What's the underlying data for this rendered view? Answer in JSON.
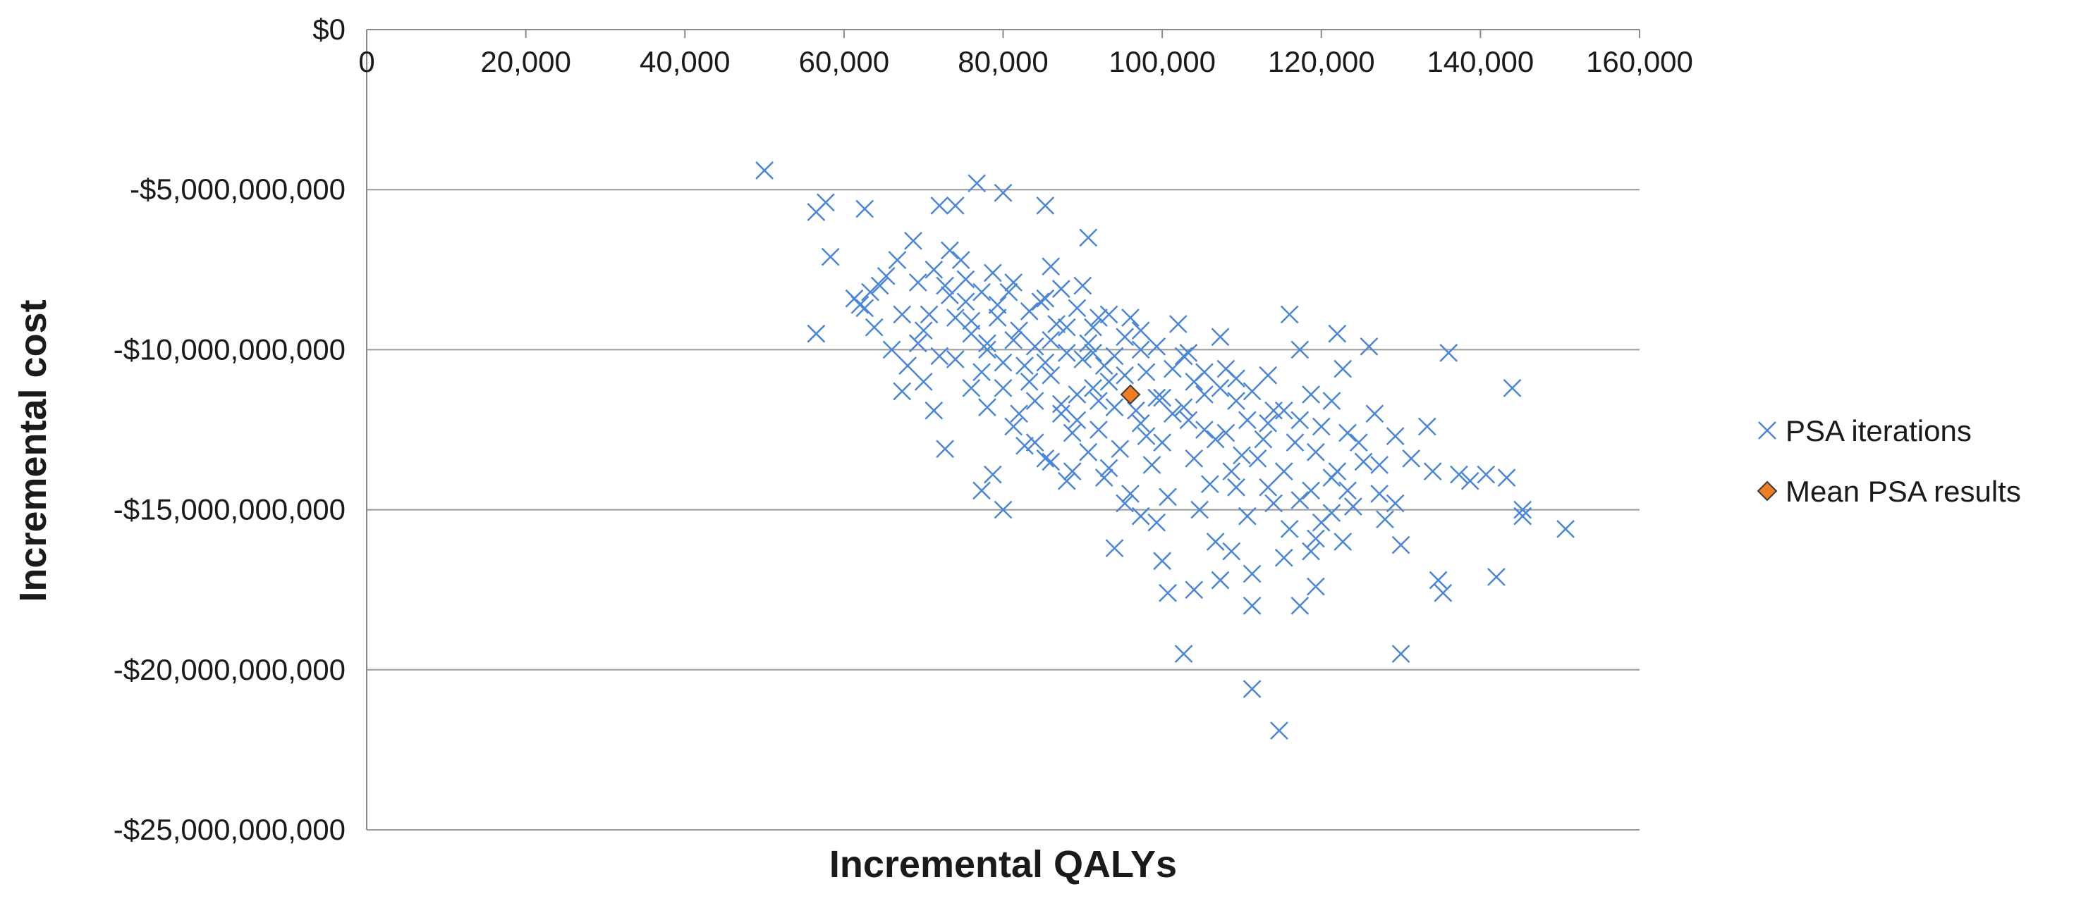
{
  "chart_data": {
    "type": "scatter",
    "title": "",
    "xlabel": "Incremental QALYs",
    "ylabel": "Incremental cost",
    "xlim": [
      0,
      160000
    ],
    "ylim": [
      -25000000000,
      0
    ],
    "x_ticks": [
      {
        "value": 0,
        "label": "0"
      },
      {
        "value": 20000,
        "label": "20,000"
      },
      {
        "value": 40000,
        "label": "40,000"
      },
      {
        "value": 60000,
        "label": "60,000"
      },
      {
        "value": 80000,
        "label": "80,000"
      },
      {
        "value": 100000,
        "label": "100,000"
      },
      {
        "value": 120000,
        "label": "120,000"
      },
      {
        "value": 140000,
        "label": "140,000"
      },
      {
        "value": 160000,
        "label": "160,000"
      }
    ],
    "y_ticks": [
      {
        "value": 0,
        "label": "$0"
      },
      {
        "value": -5000000000,
        "label": "-$5,000,000,000"
      },
      {
        "value": -10000000000,
        "label": "-$10,000,000,000"
      },
      {
        "value": -15000000000,
        "label": "-$15,000,000,000"
      },
      {
        "value": -20000000000,
        "label": "-$20,000,000,000"
      },
      {
        "value": -25000000000,
        "label": "-$25,000,000,000"
      }
    ],
    "x_axis_position": "top",
    "grid": "horizontal",
    "legend_position": "right",
    "series": [
      {
        "name": "PSA iterations",
        "marker": "x",
        "color": "#4a86d8",
        "points": [
          [
            50000,
            -4400000000.0
          ],
          [
            56500,
            -5700000000.0
          ],
          [
            57700,
            -5400000000.0
          ],
          [
            62600,
            -5600000000.0
          ],
          [
            58300,
            -7100000000.0
          ],
          [
            56500,
            -9500000000.0
          ],
          [
            61300,
            -8400000000.0
          ],
          [
            62600,
            -8700000000.0
          ],
          [
            63300,
            -8200000000.0
          ],
          [
            64500,
            -8000000000.0
          ],
          [
            62000,
            -8600000000.0
          ],
          [
            63800,
            -9300000000.0
          ],
          [
            65300,
            -7700000000.0
          ],
          [
            66700,
            -7200000000.0
          ],
          [
            68700,
            -6600000000.0
          ],
          [
            67300,
            -8900000000.0
          ],
          [
            69300,
            -9800000000.0
          ],
          [
            66000,
            -10000000000.0
          ],
          [
            67300,
            -11300000000.0
          ],
          [
            70000,
            -11000000000.0
          ],
          [
            71300,
            -11900000000.0
          ],
          [
            72700,
            -13100000000.0
          ],
          [
            72000,
            -5500000000.0
          ],
          [
            74000,
            -5500000000.0
          ],
          [
            73300,
            -6900000000.0
          ],
          [
            74700,
            -7200000000.0
          ],
          [
            72700,
            -8000000000.0
          ],
          [
            75300,
            -8500000000.0
          ],
          [
            70700,
            -8900000000.0
          ],
          [
            76000,
            -9500000000.0
          ],
          [
            78000,
            -9800000000.0
          ],
          [
            74000,
            -10300000000.0
          ],
          [
            77300,
            -10700000000.0
          ],
          [
            76700,
            -4800000000.0
          ],
          [
            80000,
            -5100000000.0
          ],
          [
            78700,
            -7600000000.0
          ],
          [
            80700,
            -8200000000.0
          ],
          [
            79300,
            -9000000000.0
          ],
          [
            81300,
            -9700000000.0
          ],
          [
            82700,
            -10500000000.0
          ],
          [
            80000,
            -11200000000.0
          ],
          [
            84000,
            -11600000000.0
          ],
          [
            81300,
            -12400000000.0
          ],
          [
            82700,
            -13000000000.0
          ],
          [
            78700,
            -13900000000.0
          ],
          [
            77300,
            -14400000000.0
          ],
          [
            80000,
            -15000000000.0
          ],
          [
            85300,
            -5500000000.0
          ],
          [
            86000,
            -7400000000.0
          ],
          [
            84700,
            -8500000000.0
          ],
          [
            86700,
            -9200000000.0
          ],
          [
            88000,
            -10100000000.0
          ],
          [
            86000,
            -10800000000.0
          ],
          [
            89300,
            -11400000000.0
          ],
          [
            87300,
            -12000000000.0
          ],
          [
            88700,
            -12600000000.0
          ],
          [
            85300,
            -13400000000.0
          ],
          [
            88000,
            -14100000000.0
          ],
          [
            90700,
            -6500000000.0
          ],
          [
            90000,
            -8000000000.0
          ],
          [
            92000,
            -9000000000.0
          ],
          [
            90700,
            -9800000000.0
          ],
          [
            92700,
            -10500000000.0
          ],
          [
            91300,
            -11200000000.0
          ],
          [
            94000,
            -11800000000.0
          ],
          [
            92000,
            -12500000000.0
          ],
          [
            94700,
            -13100000000.0
          ],
          [
            93300,
            -13700000000.0
          ],
          [
            96000,
            -14500000000.0
          ],
          [
            94000,
            -16200000000.0
          ],
          [
            96000,
            -9000000000.0
          ],
          [
            97300,
            -10000000000.0
          ],
          [
            98000,
            -10700000000.0
          ],
          [
            99300,
            -11500000000.0
          ],
          [
            97300,
            -12300000000.0
          ],
          [
            100000,
            -12900000000.0
          ],
          [
            98700,
            -13600000000.0
          ],
          [
            100700,
            -14600000000.0
          ],
          [
            99300,
            -15400000000.0
          ],
          [
            100000,
            -16600000000.0
          ],
          [
            100700,
            -17600000000.0
          ],
          [
            102000,
            -9200000000.0
          ],
          [
            102700,
            -10200000000.0
          ],
          [
            104000,
            -11000000000.0
          ],
          [
            102700,
            -11800000000.0
          ],
          [
            105300,
            -12500000000.0
          ],
          [
            104000,
            -13400000000.0
          ],
          [
            106000,
            -14200000000.0
          ],
          [
            104700,
            -15000000000.0
          ],
          [
            106700,
            -16000000000.0
          ],
          [
            104000,
            -17500000000.0
          ],
          [
            102700,
            -19500000000.0
          ],
          [
            107300,
            -9600000000.0
          ],
          [
            108000,
            -10600000000.0
          ],
          [
            109300,
            -11600000000.0
          ],
          [
            108000,
            -12600000000.0
          ],
          [
            110000,
            -13300000000.0
          ],
          [
            109300,
            -14300000000.0
          ],
          [
            110700,
            -15200000000.0
          ],
          [
            108700,
            -16300000000.0
          ],
          [
            107300,
            -17200000000.0
          ],
          [
            111300,
            -17000000000.0
          ],
          [
            111300,
            -18000000000.0
          ],
          [
            111300,
            -20600000000.0
          ],
          [
            113300,
            -10800000000.0
          ],
          [
            114000,
            -11900000000.0
          ],
          [
            112700,
            -12800000000.0
          ],
          [
            115300,
            -13800000000.0
          ],
          [
            114000,
            -14800000000.0
          ],
          [
            116000,
            -15600000000.0
          ],
          [
            115300,
            -16500000000.0
          ],
          [
            117300,
            -18000000000.0
          ],
          [
            114700,
            -21900000000.0
          ],
          [
            116000,
            -8900000000.0
          ],
          [
            117300,
            -10000000000.0
          ],
          [
            118700,
            -11400000000.0
          ],
          [
            117300,
            -12200000000.0
          ],
          [
            119300,
            -13200000000.0
          ],
          [
            118700,
            -14400000000.0
          ],
          [
            120000,
            -15400000000.0
          ],
          [
            118700,
            -16300000000.0
          ],
          [
            119300,
            -17400000000.0
          ],
          [
            122000,
            -9500000000.0
          ],
          [
            122700,
            -10600000000.0
          ],
          [
            121300,
            -11600000000.0
          ],
          [
            123300,
            -12600000000.0
          ],
          [
            122000,
            -13800000000.0
          ],
          [
            124000,
            -14900000000.0
          ],
          [
            122700,
            -16000000000.0
          ],
          [
            126000,
            -9900000000.0
          ],
          [
            126700,
            -12000000000.0
          ],
          [
            127300,
            -13600000000.0
          ],
          [
            128000,
            -15300000000.0
          ],
          [
            129300,
            -14800000000.0
          ],
          [
            130000,
            -16100000000.0
          ],
          [
            130000,
            -19500000000.0
          ],
          [
            131300,
            -13400000000.0
          ],
          [
            133300,
            -12400000000.0
          ],
          [
            134000,
            -13800000000.0
          ],
          [
            134700,
            -17200000000.0
          ],
          [
            135300,
            -17600000000.0
          ],
          [
            136000,
            -10100000000.0
          ],
          [
            137300,
            -13900000000.0
          ],
          [
            138700,
            -14100000000.0
          ],
          [
            140700,
            -13900000000.0
          ],
          [
            142000,
            -17100000000.0
          ],
          [
            143300,
            -14000000000.0
          ],
          [
            144000,
            -11200000000.0
          ],
          [
            145300,
            -15000000000.0
          ],
          [
            145300,
            -15200000000.0
          ],
          [
            150700,
            -15600000000.0
          ],
          [
            83300,
            -11000000000.0
          ],
          [
            85300,
            -10400000000.0
          ],
          [
            87300,
            -11700000000.0
          ],
          [
            89300,
            -12200000000.0
          ],
          [
            91300,
            -10100000000.0
          ],
          [
            93300,
            -11000000000.0
          ],
          [
            95300,
            -10800000000.0
          ],
          [
            96700,
            -11900000000.0
          ],
          [
            98000,
            -12700000000.0
          ],
          [
            100000,
            -11500000000.0
          ],
          [
            101300,
            -12000000000.0
          ],
          [
            103300,
            -12200000000.0
          ],
          [
            105300,
            -11400000000.0
          ],
          [
            106700,
            -12800000000.0
          ],
          [
            108700,
            -13800000000.0
          ],
          [
            110700,
            -12200000000.0
          ],
          [
            112000,
            -13400000000.0
          ],
          [
            113300,
            -12300000000.0
          ],
          [
            115300,
            -11900000000.0
          ],
          [
            116700,
            -12900000000.0
          ],
          [
            120000,
            -12400000000.0
          ],
          [
            121300,
            -14000000000.0
          ],
          [
            124700,
            -12900000000.0
          ],
          [
            76000,
            -9100000000.0
          ],
          [
            78000,
            -10000000000.0
          ],
          [
            80000,
            -10400000000.0
          ],
          [
            82000,
            -9400000000.0
          ],
          [
            84000,
            -9900000000.0
          ],
          [
            86000,
            -9700000000.0
          ],
          [
            88000,
            -9300000000.0
          ],
          [
            90000,
            -10300000000.0
          ],
          [
            92000,
            -11600000000.0
          ],
          [
            94000,
            -10200000000.0
          ],
          [
            68000,
            -10500000000.0
          ],
          [
            70000,
            -9400000000.0
          ],
          [
            72000,
            -10200000000.0
          ],
          [
            74000,
            -9000000000.0
          ],
          [
            76000,
            -11200000000.0
          ],
          [
            78000,
            -11800000000.0
          ],
          [
            82000,
            -12000000000.0
          ],
          [
            84000,
            -12900000000.0
          ],
          [
            86000,
            -13500000000.0
          ],
          [
            88700,
            -13800000000.0
          ],
          [
            90700,
            -13200000000.0
          ],
          [
            92700,
            -14000000000.0
          ],
          [
            95300,
            -14800000000.0
          ],
          [
            97300,
            -15200000000.0
          ],
          [
            69300,
            -7900000000.0
          ],
          [
            71300,
            -7500000000.0
          ],
          [
            73300,
            -8300000000.0
          ],
          [
            75300,
            -7800000000.0
          ],
          [
            77300,
            -8200000000.0
          ],
          [
            79300,
            -8600000000.0
          ],
          [
            81300,
            -7900000000.0
          ],
          [
            83300,
            -8800000000.0
          ],
          [
            85300,
            -8400000000.0
          ],
          [
            87300,
            -8100000000.0
          ],
          [
            89300,
            -8700000000.0
          ],
          [
            91300,
            -9300000000.0
          ],
          [
            93300,
            -8900000000.0
          ],
          [
            95300,
            -9600000000.0
          ],
          [
            97300,
            -9400000000.0
          ],
          [
            99300,
            -9900000000.0
          ],
          [
            101300,
            -10600000000.0
          ],
          [
            103300,
            -10100000000.0
          ],
          [
            105300,
            -10700000000.0
          ],
          [
            107300,
            -11200000000.0
          ],
          [
            109300,
            -10900000000.0
          ],
          [
            111300,
            -11300000000.0
          ],
          [
            113300,
            -14300000000.0
          ],
          [
            117300,
            -14700000000.0
          ],
          [
            119300,
            -15900000000.0
          ],
          [
            121300,
            -15100000000.0
          ],
          [
            123300,
            -14400000000.0
          ],
          [
            125300,
            -13500000000.0
          ],
          [
            127300,
            -14500000000.0
          ],
          [
            129300,
            -12700000000.0
          ]
        ]
      },
      {
        "name": "Mean PSA results",
        "marker": "diamond",
        "color": "#f07d22",
        "points": [
          [
            96000,
            -11400000000.0
          ]
        ]
      }
    ]
  }
}
